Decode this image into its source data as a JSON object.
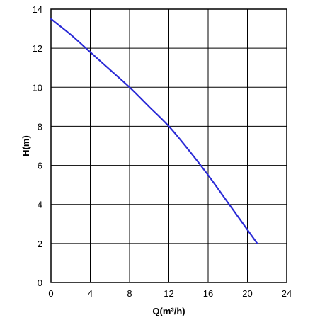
{
  "chart_data": {
    "type": "line",
    "title": "",
    "xlabel": "Q(m³/h)",
    "ylabel": "H(m)",
    "xlim": [
      0,
      24
    ],
    "ylim": [
      0,
      14
    ],
    "xticks": [
      "0",
      "4",
      "8",
      "12",
      "16",
      "20",
      "24"
    ],
    "yticks": [
      "0",
      "2",
      "4",
      "6",
      "8",
      "10",
      "12",
      "14"
    ],
    "grid": true,
    "legend": "none",
    "series": [
      {
        "color": "#2b2bd6",
        "x": [
          0,
          2,
          4,
          6,
          8,
          10,
          12,
          14,
          16,
          18,
          20,
          21
        ],
        "y": [
          13.5,
          12.7,
          11.8,
          10.9,
          10.0,
          9.0,
          8.0,
          6.8,
          5.5,
          4.1,
          2.7,
          2.0
        ]
      }
    ]
  }
}
